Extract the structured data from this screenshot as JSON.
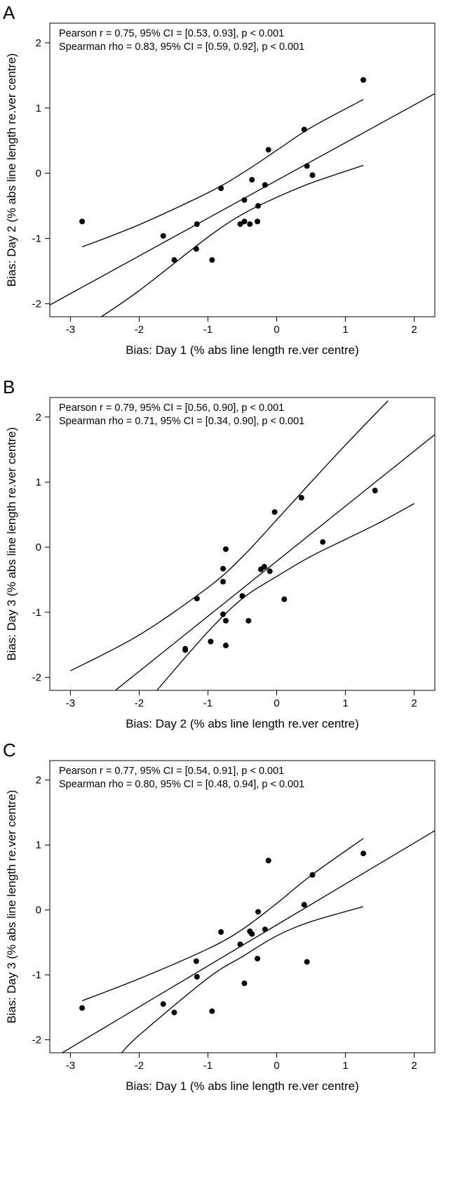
{
  "chart_data": [
    {
      "panel_letter": "A",
      "type": "scatter",
      "xlabel": "Bias: Day 1 (% abs line length re.ver centre)",
      "ylabel": "Bias: Day 2 (% abs line length re.ver centre)",
      "xlim": [
        -3.3,
        2.3
      ],
      "ylim": [
        -2.2,
        2.3
      ],
      "xticks": [
        -3,
        -2,
        -1,
        0,
        1,
        2
      ],
      "yticks": [
        -2,
        -1,
        0,
        1,
        2
      ],
      "annotations": [
        "Pearson r = 0.75, 95% CI = [0.53, 0.93], p < 0.001",
        "Spearman rho = 0.83, 95% CI = [0.59, 0.92], p < 0.001"
      ],
      "points": [
        {
          "x": -2.83,
          "y": -0.74
        },
        {
          "x": -1.65,
          "y": -0.96
        },
        {
          "x": -1.49,
          "y": -1.33
        },
        {
          "x": -1.17,
          "y": -1.16
        },
        {
          "x": -1.16,
          "y": -0.78
        },
        {
          "x": -0.94,
          "y": -1.33
        },
        {
          "x": -0.81,
          "y": -0.23
        },
        {
          "x": -0.53,
          "y": -0.78
        },
        {
          "x": -0.47,
          "y": -0.74
        },
        {
          "x": -0.47,
          "y": -0.41
        },
        {
          "x": -0.39,
          "y": -0.78
        },
        {
          "x": -0.36,
          "y": -0.1
        },
        {
          "x": -0.28,
          "y": -0.74
        },
        {
          "x": -0.27,
          "y": -0.5
        },
        {
          "x": -0.17,
          "y": -0.18
        },
        {
          "x": -0.12,
          "y": 0.36
        },
        {
          "x": 0.4,
          "y": 0.67
        },
        {
          "x": 0.44,
          "y": 0.11
        },
        {
          "x": 0.52,
          "y": -0.03
        },
        {
          "x": 1.26,
          "y": 1.43
        }
      ],
      "fit_line": [
        {
          "x": -3.3,
          "y": -2.02
        },
        {
          "x": 2.3,
          "y": 1.22
        }
      ],
      "ci_upper": [
        {
          "x": -2.83,
          "y": -1.13
        },
        {
          "x": -2.0,
          "y": -0.79
        },
        {
          "x": -1.0,
          "y": -0.3
        },
        {
          "x": -0.5,
          "y": 0.0
        },
        {
          "x": 0.0,
          "y": 0.35
        },
        {
          "x": 0.5,
          "y": 0.7
        },
        {
          "x": 1.26,
          "y": 1.13
        }
      ],
      "ci_lower": [
        {
          "x": -2.58,
          "y": -2.22
        },
        {
          "x": -2.0,
          "y": -1.8
        },
        {
          "x": -1.0,
          "y": -0.98
        },
        {
          "x": -0.5,
          "y": -0.63
        },
        {
          "x": 0.0,
          "y": -0.37
        },
        {
          "x": 0.5,
          "y": -0.15
        },
        {
          "x": 1.26,
          "y": 0.12
        }
      ]
    },
    {
      "panel_letter": "B",
      "type": "scatter",
      "xlabel": "Bias: Day 2 (% abs line length re.ver centre)",
      "ylabel": "Bias: Day 3 (% abs line length re.ver centre)",
      "xlim": [
        -3.3,
        2.3
      ],
      "ylim": [
        -2.2,
        2.3
      ],
      "xticks": [
        -3,
        -2,
        -1,
        0,
        1,
        2
      ],
      "yticks": [
        -2,
        -1,
        0,
        1,
        2
      ],
      "annotations": [
        "Pearson r = 0.79, 95% CI = [0.56, 0.90], p < 0.001",
        "Spearman rho = 0.71, 95% CI = [0.34, 0.90],  p < 0.001"
      ],
      "points": [
        {
          "x": -1.33,
          "y": -1.56
        },
        {
          "x": -1.33,
          "y": -1.58
        },
        {
          "x": -1.16,
          "y": -0.79
        },
        {
          "x": -0.96,
          "y": -1.45
        },
        {
          "x": -0.78,
          "y": -0.33
        },
        {
          "x": -0.78,
          "y": -0.53
        },
        {
          "x": -0.78,
          "y": -1.03
        },
        {
          "x": -0.74,
          "y": -0.03
        },
        {
          "x": -0.74,
          "y": -1.13
        },
        {
          "x": -0.74,
          "y": -1.51
        },
        {
          "x": -0.5,
          "y": -0.75
        },
        {
          "x": -0.41,
          "y": -1.13
        },
        {
          "x": -0.23,
          "y": -0.34
        },
        {
          "x": -0.18,
          "y": -0.3
        },
        {
          "x": -0.1,
          "y": -0.37
        },
        {
          "x": -0.03,
          "y": 0.54
        },
        {
          "x": 0.11,
          "y": -0.8
        },
        {
          "x": 0.36,
          "y": 0.76
        },
        {
          "x": 0.67,
          "y": 0.08
        },
        {
          "x": 1.43,
          "y": 0.87
        }
      ],
      "fit_line": [
        {
          "x": -2.37,
          "y": -2.22
        },
        {
          "x": 2.3,
          "y": 1.73
        }
      ],
      "ci_upper": [
        {
          "x": -3.0,
          "y": -1.9
        },
        {
          "x": -2.0,
          "y": -1.35
        },
        {
          "x": -1.0,
          "y": -0.62
        },
        {
          "x": -0.5,
          "y": -0.15
        },
        {
          "x": 0.0,
          "y": 0.42
        },
        {
          "x": 0.5,
          "y": 1.0
        },
        {
          "x": 1.0,
          "y": 1.57
        },
        {
          "x": 1.5,
          "y": 2.12
        },
        {
          "x": 1.62,
          "y": 2.25
        }
      ],
      "ci_lower": [
        {
          "x": -1.76,
          "y": -2.22
        },
        {
          "x": -1.0,
          "y": -1.3
        },
        {
          "x": -0.5,
          "y": -0.79
        },
        {
          "x": 0.0,
          "y": -0.45
        },
        {
          "x": 0.5,
          "y": -0.14
        },
        {
          "x": 1.0,
          "y": 0.12
        },
        {
          "x": 1.5,
          "y": 0.38
        },
        {
          "x": 2.0,
          "y": 0.67
        }
      ]
    },
    {
      "panel_letter": "C",
      "type": "scatter",
      "xlabel": "Bias: Day 1 (% abs line length re.ver centre)",
      "ylabel": "Bias: Day 3 (% abs line length re.ver centre)",
      "xlim": [
        -3.3,
        2.3
      ],
      "ylim": [
        -2.2,
        2.3
      ],
      "xticks": [
        -3,
        -2,
        -1,
        0,
        1,
        2
      ],
      "yticks": [
        -2,
        -1,
        0,
        1,
        2
      ],
      "annotations": [
        "Pearson r = 0.77, 95% CI = [0.54, 0.91], p < 0.001",
        "Spearman rho = 0.80, 95% CI = [0.48, 0.94],  p < 0.001"
      ],
      "points": [
        {
          "x": -2.83,
          "y": -1.51
        },
        {
          "x": -1.65,
          "y": -1.45
        },
        {
          "x": -1.49,
          "y": -1.58
        },
        {
          "x": -1.17,
          "y": -0.79
        },
        {
          "x": -1.16,
          "y": -1.03
        },
        {
          "x": -0.94,
          "y": -1.56
        },
        {
          "x": -0.81,
          "y": -0.34
        },
        {
          "x": -0.53,
          "y": -0.53
        },
        {
          "x": -0.47,
          "y": -1.13
        },
        {
          "x": -0.39,
          "y": -0.33
        },
        {
          "x": -0.36,
          "y": -0.37
        },
        {
          "x": -0.28,
          "y": -0.75
        },
        {
          "x": -0.27,
          "y": -0.03
        },
        {
          "x": -0.17,
          "y": -0.3
        },
        {
          "x": -0.12,
          "y": 0.76
        },
        {
          "x": 0.4,
          "y": 0.08
        },
        {
          "x": 0.44,
          "y": -0.8
        },
        {
          "x": 0.52,
          "y": 0.54
        },
        {
          "x": 1.26,
          "y": 0.87
        }
      ],
      "fit_line": [
        {
          "x": -3.15,
          "y": -2.22
        },
        {
          "x": 2.3,
          "y": 1.22
        }
      ],
      "ci_upper": [
        {
          "x": -2.83,
          "y": -1.4
        },
        {
          "x": -2.0,
          "y": -1.06
        },
        {
          "x": -1.0,
          "y": -0.6
        },
        {
          "x": -0.5,
          "y": -0.3
        },
        {
          "x": 0.0,
          "y": 0.1
        },
        {
          "x": 0.5,
          "y": 0.53
        },
        {
          "x": 1.26,
          "y": 1.1
        }
      ],
      "ci_lower": [
        {
          "x": -2.27,
          "y": -2.22
        },
        {
          "x": -2.0,
          "y": -1.93
        },
        {
          "x": -1.0,
          "y": -1.05
        },
        {
          "x": -0.5,
          "y": -0.72
        },
        {
          "x": 0.0,
          "y": -0.4
        },
        {
          "x": 0.5,
          "y": -0.18
        },
        {
          "x": 1.26,
          "y": 0.05
        }
      ]
    }
  ]
}
